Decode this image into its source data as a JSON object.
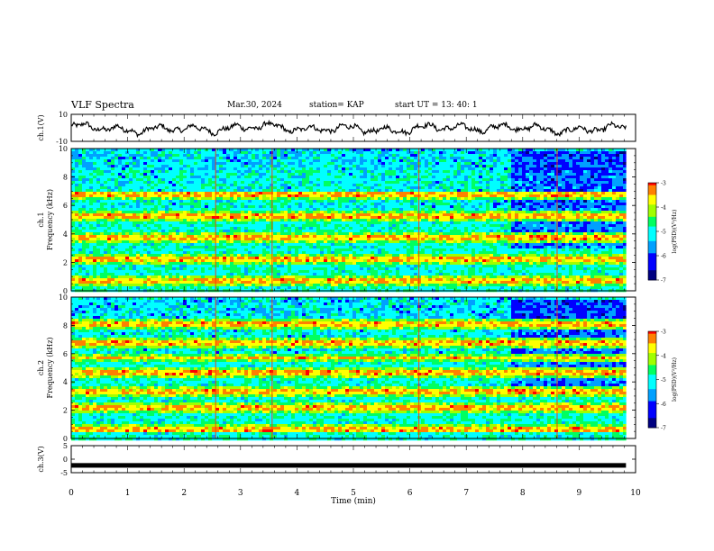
{
  "header": {
    "title": "VLF Spectra",
    "date": "Mar.30, 2024",
    "station": "station= KAP",
    "start": "start  UT =   13: 40: 1"
  },
  "chart_data": [
    {
      "type": "line",
      "panel": "ch1-waveform",
      "ylabel": "ch.1(V)",
      "ylim": [
        -10,
        10
      ],
      "yticks": [
        "10",
        "-10"
      ],
      "xlim": [
        0,
        10
      ],
      "x_end": 9.83,
      "mean_level": -0.5,
      "amplitude": 3.5,
      "line_color": "#000000"
    },
    {
      "type": "heatmap",
      "panel": "ch1-spectrogram",
      "ylabel": "ch.1\nFrequency (kHz)",
      "ylim": [
        0,
        10
      ],
      "yticks": [
        "0",
        "2",
        "4",
        "6",
        "8",
        "10"
      ],
      "xlim": [
        0,
        10
      ],
      "x_end": 9.83,
      "strong_bands_khz": [
        0.8,
        2.3,
        3.8,
        5.4,
        6.8
      ],
      "vertical_sferics_min": [
        2.55,
        3.55,
        6.15,
        8.6
      ],
      "quiet_region_after_min": 7.75,
      "colorbar": {
        "label": "log(PSD)(V²/Hz)",
        "ticks": [
          "-3",
          "-4",
          "-5",
          "-6",
          "-7"
        ],
        "range": [
          -7,
          -3
        ]
      }
    },
    {
      "type": "heatmap",
      "panel": "ch2-spectrogram",
      "ylabel": "ch.2\nFrequency (kHz)",
      "ylim": [
        0,
        10
      ],
      "yticks": [
        "0",
        "2",
        "4",
        "6",
        "8",
        "10"
      ],
      "xlim": [
        0,
        10
      ],
      "x_end": 9.83,
      "strong_bands_khz": [
        0.8,
        2.3,
        3.4,
        4.7,
        5.8,
        6.8,
        8.2
      ],
      "vertical_sferics_min": [
        2.55,
        3.55,
        6.15,
        8.6
      ],
      "quiet_region_after_min": 7.75,
      "colorbar": {
        "label": "log(PSD)(V²/Hz)",
        "ticks": [
          "-3",
          "-4",
          "-5",
          "-6",
          "-7"
        ],
        "range": [
          -7,
          -3
        ]
      }
    },
    {
      "type": "line",
      "panel": "ch3-waveform",
      "ylabel": "ch.3(V)",
      "ylim": [
        -5,
        5
      ],
      "yticks": [
        "5",
        "0",
        "-5"
      ],
      "xlim": [
        0,
        10
      ],
      "x_end": 9.83,
      "mean_level": -2.3,
      "amplitude": 0.35,
      "line_color": "#000000"
    }
  ],
  "xaxis": {
    "label": "Time (min)",
    "ticks": [
      "0",
      "1",
      "2",
      "3",
      "4",
      "5",
      "6",
      "7",
      "8",
      "9",
      "10"
    ]
  },
  "colorscale": [
    "#000080",
    "#0000ff",
    "#00a0ff",
    "#00ffff",
    "#00ff60",
    "#a0ff00",
    "#ffff00",
    "#ff8000",
    "#ff0000",
    "#ffffff"
  ]
}
